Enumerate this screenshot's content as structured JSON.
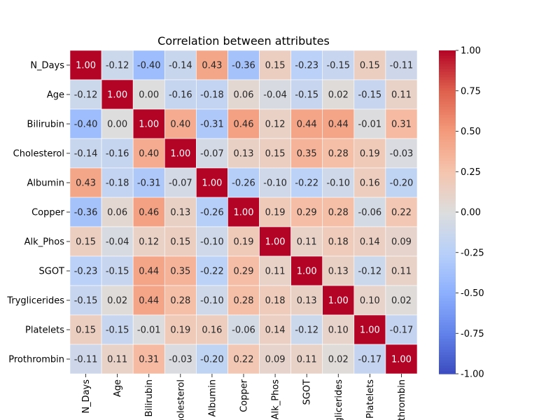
{
  "chart_data": {
    "type": "heatmap",
    "title": "Correlation between attributes",
    "x_tick_labels": [
      "N_Days",
      "Age",
      "Bilirubin",
      "Cholesterol",
      "Albumin",
      "Copper",
      "Alk_Phos",
      "SGOT",
      "Tryglicerides",
      "Platelets",
      "Prothrombin"
    ],
    "y_tick_labels": [
      "N_Days",
      "Age",
      "Bilirubin",
      "Cholesterol",
      "Albumin",
      "Copper",
      "Alk_Phos",
      "SGOT",
      "Tryglicerides",
      "Platelets",
      "Prothrombin"
    ],
    "values": [
      [
        1.0,
        -0.12,
        -0.4,
        -0.14,
        0.43,
        -0.36,
        0.15,
        -0.23,
        -0.15,
        0.15,
        -0.11
      ],
      [
        -0.12,
        1.0,
        0.0,
        -0.16,
        -0.18,
        0.06,
        -0.04,
        -0.15,
        0.02,
        -0.15,
        0.11
      ],
      [
        -0.4,
        0.0,
        1.0,
        0.4,
        -0.31,
        0.46,
        0.12,
        0.44,
        0.44,
        -0.01,
        0.31
      ],
      [
        -0.14,
        -0.16,
        0.4,
        1.0,
        -0.07,
        0.13,
        0.15,
        0.35,
        0.28,
        0.19,
        -0.03
      ],
      [
        0.43,
        -0.18,
        -0.31,
        -0.07,
        1.0,
        -0.26,
        -0.1,
        -0.22,
        -0.1,
        0.16,
        -0.2
      ],
      [
        -0.36,
        0.06,
        0.46,
        0.13,
        -0.26,
        1.0,
        0.19,
        0.29,
        0.28,
        -0.06,
        0.22
      ],
      [
        0.15,
        -0.04,
        0.12,
        0.15,
        -0.1,
        0.19,
        1.0,
        0.11,
        0.18,
        0.14,
        0.09
      ],
      [
        -0.23,
        -0.15,
        0.44,
        0.35,
        -0.22,
        0.29,
        0.11,
        1.0,
        0.13,
        -0.12,
        0.11
      ],
      [
        -0.15,
        0.02,
        0.44,
        0.28,
        -0.1,
        0.28,
        0.18,
        0.13,
        1.0,
        0.1,
        0.02
      ],
      [
        0.15,
        -0.15,
        -0.01,
        0.19,
        0.16,
        -0.06,
        0.14,
        -0.12,
        0.1,
        1.0,
        -0.17
      ],
      [
        -0.11,
        0.11,
        0.31,
        -0.03,
        -0.2,
        0.22,
        0.09,
        0.11,
        0.02,
        -0.17,
        1.0
      ]
    ],
    "colorbar": {
      "colormap": "coolwarm",
      "range": [
        -1.0,
        1.0
      ],
      "ticks": [
        "1.00",
        "0.75",
        "0.50",
        "0.25",
        "0.00",
        "-0.25",
        "-0.50",
        "-0.75",
        "-1.00"
      ]
    },
    "colors": {
      "low": "#3b4cc0",
      "mid": "#dddddd",
      "high": "#b40426",
      "cell_border": "#ffffff"
    },
    "grid": false
  }
}
